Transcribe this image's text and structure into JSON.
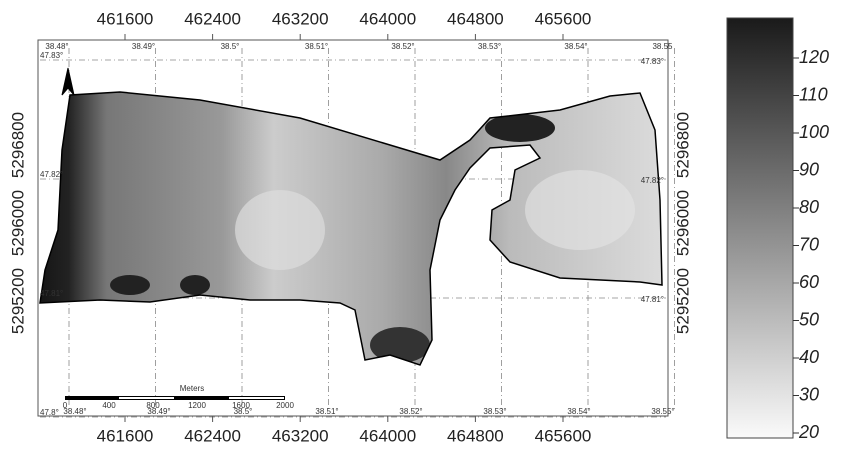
{
  "map": {
    "eastings": [
      461600,
      462400,
      463200,
      464000,
      464800,
      465600
    ],
    "northings": [
      5296800,
      5296000,
      5295200
    ],
    "top_longitudes": [
      "38.48°",
      "38.49°",
      "38.5°",
      "38.51°",
      "38.52°",
      "38.53°",
      "38.54°",
      "38.55"
    ],
    "bottom_longitudes": [
      "38.48°",
      "38.49°",
      "38.5°",
      "38.51°",
      "38.52°",
      "38.53°",
      "38.54°",
      "38.55°"
    ],
    "left_latitudes": [
      "47.83°",
      "47.82°",
      "47.81°",
      "47.8°"
    ],
    "right_latitudes": [
      "47.83°",
      "47.82°",
      "47.81°"
    ]
  },
  "scale_bar": {
    "title": "Meters",
    "ticks": [
      0,
      400,
      800,
      1200,
      1600,
      2000
    ]
  },
  "colorbar": {
    "ticks": [
      120,
      110,
      100,
      90,
      80,
      70,
      60,
      50,
      40,
      30,
      20
    ]
  }
}
